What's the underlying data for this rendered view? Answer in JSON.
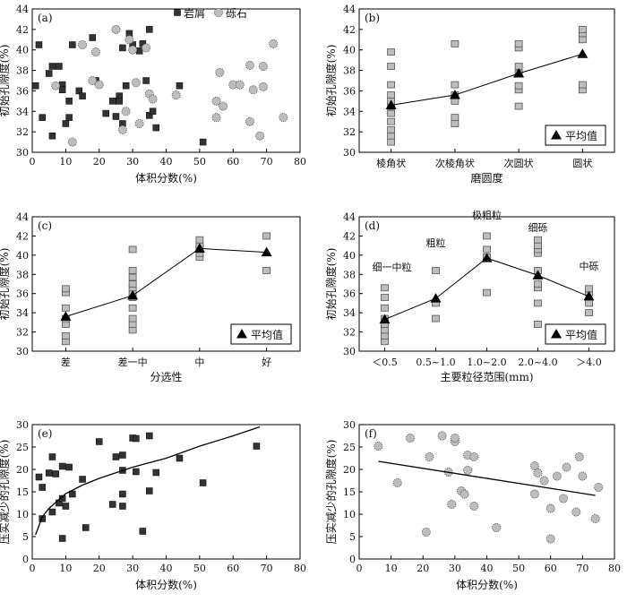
{
  "colors": {
    "ink": "#111111",
    "marker_dark": "#333333",
    "marker_gray": "#bdbdbd",
    "marker_gray_edge": "#555555"
  },
  "chart_data": [
    {
      "panel": "(a)",
      "type": "scatter",
      "xlabel": "体积分数(%)",
      "ylabel": "初始孔隙度(%)",
      "xlim": [
        0,
        80
      ],
      "ylim": [
        30,
        44
      ],
      "xticks": [
        0,
        10,
        20,
        30,
        40,
        50,
        60,
        70,
        80
      ],
      "yticks": [
        30,
        32,
        34,
        36,
        38,
        40,
        42,
        44
      ],
      "legend_position": "top-right",
      "series": [
        {
          "name": "岩屑",
          "marker": "square-dark",
          "points": [
            [
              1,
              36.5
            ],
            [
              2,
              40.5
            ],
            [
              3,
              33.4
            ],
            [
              5,
              37.7
            ],
            [
              6,
              31.6
            ],
            [
              6,
              38.4
            ],
            [
              8,
              38.4
            ],
            [
              9,
              36.6
            ],
            [
              9,
              36.1
            ],
            [
              10,
              32.8
            ],
            [
              11,
              33.4
            ],
            [
              11,
              35
            ],
            [
              12,
              40.5
            ],
            [
              14,
              36
            ],
            [
              15,
              35.5
            ],
            [
              18,
              41.2
            ],
            [
              19,
              37
            ],
            [
              22,
              33.8
            ],
            [
              24,
              35
            ],
            [
              25,
              33.5
            ],
            [
              26,
              35.5
            ],
            [
              26,
              35
            ],
            [
              27,
              32.8
            ],
            [
              27,
              40.2
            ],
            [
              28,
              36.5
            ],
            [
              29,
              41.6
            ],
            [
              30,
              40.5
            ],
            [
              32,
              39.9
            ],
            [
              33,
              40.6
            ],
            [
              34,
              37
            ],
            [
              35,
              33.6
            ],
            [
              35,
              42
            ],
            [
              36,
              34
            ],
            [
              37,
              32.4
            ],
            [
              44,
              36.5
            ],
            [
              51,
              31.0
            ]
          ]
        },
        {
          "name": "砾石",
          "marker": "circle-gray",
          "points": [
            [
              7,
              36.5
            ],
            [
              12,
              31.0
            ],
            [
              15,
              40.5
            ],
            [
              18,
              37
            ],
            [
              19,
              39.8
            ],
            [
              20,
              36.6
            ],
            [
              25,
              42
            ],
            [
              27,
              32.2
            ],
            [
              28,
              34
            ],
            [
              29,
              41
            ],
            [
              30,
              40
            ],
            [
              31,
              36.8
            ],
            [
              32,
              32.8
            ],
            [
              34,
              40.2
            ],
            [
              35,
              35.7
            ],
            [
              36,
              35.2
            ],
            [
              43,
              35.6
            ],
            [
              55,
              33.4
            ],
            [
              55,
              35
            ],
            [
              56,
              37.8
            ],
            [
              57,
              34.5
            ],
            [
              60,
              36.6
            ],
            [
              62,
              36.6
            ],
            [
              65,
              33
            ],
            [
              65,
              38.5
            ],
            [
              66,
              36.1
            ],
            [
              68,
              31.6
            ],
            [
              69,
              38.4
            ],
            [
              69,
              36.4
            ],
            [
              72,
              40.6
            ],
            [
              75,
              33.4
            ]
          ]
        }
      ],
      "legend": [
        "岩屑",
        "砾石"
      ]
    },
    {
      "panel": "(b)",
      "type": "scatter",
      "xlabel": "磨圆度",
      "ylabel": "初始孔隙度(%)",
      "categories": [
        "棱角状",
        "次棱角状",
        "次圆状",
        "圆状"
      ],
      "ylim": [
        30,
        44
      ],
      "yticks": [
        30,
        32,
        34,
        36,
        38,
        40,
        42,
        44
      ],
      "legend_position": "bottom-right",
      "series": [
        {
          "name": "样品",
          "marker": "square-gray",
          "points": [
            [
              0,
              31.0
            ],
            [
              0,
              31.6
            ],
            [
              0,
              32.2
            ],
            [
              0,
              33.0
            ],
            [
              0,
              33.8
            ],
            [
              0,
              34.5
            ],
            [
              0,
              35.0
            ],
            [
              0,
              35.6
            ],
            [
              0,
              36.6
            ],
            [
              0,
              38.4
            ],
            [
              0,
              39.8
            ],
            [
              1,
              32.8
            ],
            [
              1,
              33.4
            ],
            [
              1,
              35.0
            ],
            [
              1,
              35.6
            ],
            [
              1,
              36.6
            ],
            [
              1,
              40.6
            ],
            [
              2,
              34.5
            ],
            [
              2,
              36.1
            ],
            [
              2,
              36.5
            ],
            [
              2,
              37.7
            ],
            [
              2,
              38.4
            ],
            [
              2,
              40.2
            ],
            [
              2,
              40.6
            ],
            [
              3,
              36.1
            ],
            [
              3,
              36.6
            ],
            [
              3,
              41.0
            ],
            [
              3,
              41.6
            ],
            [
              3,
              42.0
            ]
          ]
        },
        {
          "name": "平均值",
          "marker": "triangle",
          "values": [
            34.6,
            35.6,
            37.7,
            39.6
          ]
        }
      ],
      "legend": [
        "平均值"
      ]
    },
    {
      "panel": "(c)",
      "type": "scatter",
      "xlabel": "分选性",
      "ylabel": "初始孔隙度(%)",
      "categories": [
        "差",
        "差一中",
        "中",
        "好"
      ],
      "ylim": [
        30,
        44
      ],
      "yticks": [
        30,
        32,
        34,
        36,
        38,
        40,
        42,
        44
      ],
      "legend_position": "bottom-right",
      "series": [
        {
          "name": "样品",
          "marker": "square-gray",
          "points": [
            [
              0,
              31.0
            ],
            [
              0,
              31.6
            ],
            [
              0,
              32.8
            ],
            [
              0,
              33.4
            ],
            [
              0,
              34.5
            ],
            [
              0,
              36.1
            ],
            [
              0,
              36.5
            ],
            [
              1,
              32.2
            ],
            [
              1,
              32.8
            ],
            [
              1,
              33.4
            ],
            [
              1,
              34.5
            ],
            [
              1,
              35.6
            ],
            [
              1,
              36.1
            ],
            [
              1,
              36.6
            ],
            [
              1,
              37.0
            ],
            [
              1,
              37.7
            ],
            [
              1,
              38.4
            ],
            [
              1,
              40.6
            ],
            [
              2,
              39.8
            ],
            [
              2,
              40.2
            ],
            [
              2,
              40.6
            ],
            [
              2,
              41.0
            ],
            [
              2,
              41.6
            ],
            [
              3,
              38.4
            ],
            [
              3,
              42.0
            ]
          ]
        },
        {
          "name": "平均值",
          "marker": "triangle",
          "values": [
            33.6,
            35.8,
            40.7,
            40.3
          ]
        }
      ],
      "legend": [
        "平均值"
      ]
    },
    {
      "panel": "(d)",
      "type": "scatter",
      "xlabel": "主要粒径范围(mm)",
      "ylabel": "初始孔隙度(%)",
      "categories": [
        "＜0.5",
        "0.5~1.0",
        "1.0~2.0",
        "2.0~4.0",
        "＞4.0"
      ],
      "ylim": [
        30,
        44
      ],
      "yticks": [
        30,
        32,
        34,
        36,
        38,
        40,
        42,
        44
      ],
      "annotations": [
        "细一中粒",
        "粗粒",
        "极粗粒",
        "细砾",
        "中砾"
      ],
      "legend_position": "bottom-right",
      "series": [
        {
          "name": "样品",
          "marker": "square-gray",
          "points": [
            [
              0,
              31.0
            ],
            [
              0,
              31.6
            ],
            [
              0,
              32.2
            ],
            [
              0,
              32.8
            ],
            [
              0,
              33.4
            ],
            [
              0,
              34.5
            ],
            [
              0,
              35.6
            ],
            [
              0,
              36.6
            ],
            [
              1,
              33.4
            ],
            [
              1,
              35.0
            ],
            [
              1,
              38.4
            ],
            [
              2,
              36.1
            ],
            [
              2,
              39.8
            ],
            [
              2,
              40.6
            ],
            [
              2,
              42.0
            ],
            [
              3,
              32.8
            ],
            [
              3,
              35.0
            ],
            [
              3,
              36.6
            ],
            [
              3,
              37.0
            ],
            [
              3,
              38.4
            ],
            [
              3,
              40.2
            ],
            [
              3,
              40.6
            ],
            [
              3,
              41.0
            ],
            [
              3,
              41.6
            ],
            [
              4,
              34.0
            ],
            [
              4,
              35.0
            ],
            [
              4,
              36.1
            ],
            [
              4,
              36.5
            ]
          ]
        },
        {
          "name": "平均值",
          "marker": "triangle",
          "values": [
            33.3,
            35.5,
            39.7,
            37.9,
            35.7
          ]
        }
      ],
      "legend": [
        "平均值"
      ]
    },
    {
      "panel": "(e)",
      "type": "scatter",
      "xlabel": "体积分数(%)",
      "ylabel": "压实减少的孔隙度(%)",
      "xlim": [
        0,
        80
      ],
      "ylim": [
        0,
        30
      ],
      "xticks": [
        0,
        10,
        20,
        30,
        40,
        50,
        60,
        70,
        80
      ],
      "yticks": [
        0,
        5,
        10,
        15,
        20,
        25,
        30
      ],
      "series": [
        {
          "name": "样品",
          "marker": "square-dark",
          "points": [
            [
              2,
              18.3
            ],
            [
              3,
              16
            ],
            [
              3,
              9
            ],
            [
              5,
              19.2
            ],
            [
              6,
              22.8
            ],
            [
              6,
              10.5
            ],
            [
              7,
              19
            ],
            [
              8,
              12.5
            ],
            [
              9,
              20.7
            ],
            [
              9,
              13.5
            ],
            [
              9,
              4.6
            ],
            [
              10,
              11.8
            ],
            [
              11,
              20.5
            ],
            [
              12,
              14.5
            ],
            [
              15,
              17.8
            ],
            [
              16,
              7
            ],
            [
              20,
              26.2
            ],
            [
              24,
              12.2
            ],
            [
              25,
              22.8
            ],
            [
              27,
              23.2
            ],
            [
              27,
              11.8
            ],
            [
              27,
              14.5
            ],
            [
              27,
              19.8
            ],
            [
              30,
              27
            ],
            [
              31,
              26.9
            ],
            [
              31,
              19.5
            ],
            [
              33,
              6.2
            ],
            [
              35,
              27.5
            ],
            [
              35,
              15.2
            ],
            [
              37,
              19.3
            ],
            [
              44,
              22.5
            ],
            [
              51,
              17
            ],
            [
              67,
              25.2
            ]
          ]
        },
        {
          "name": "趋势线",
          "marker": "line",
          "points": [
            [
              1,
              5.4
            ],
            [
              3,
              9.4
            ],
            [
              5,
              11.3
            ],
            [
              10,
              14.6
            ],
            [
              15,
              16.5
            ],
            [
              20,
              18.0
            ],
            [
              30,
              20.5
            ],
            [
              40,
              22.5
            ],
            [
              50,
              25.2
            ],
            [
              60,
              27.5
            ],
            [
              68,
              29.5
            ]
          ]
        }
      ]
    },
    {
      "panel": "(f)",
      "type": "scatter",
      "xlabel": "体积分数(%)",
      "ylabel": "压实减少的孔隙度(%)",
      "xlim": [
        0,
        80
      ],
      "ylim": [
        0,
        30
      ],
      "xticks": [
        0,
        10,
        20,
        30,
        40,
        50,
        60,
        70,
        80
      ],
      "yticks": [
        0,
        5,
        10,
        15,
        20,
        25,
        30
      ],
      "series": [
        {
          "name": "样品",
          "marker": "circle-gray",
          "points": [
            [
              6,
              25.2
            ],
            [
              12,
              17
            ],
            [
              16,
              27
            ],
            [
              21,
              6
            ],
            [
              22,
              22.8
            ],
            [
              26,
              27.5
            ],
            [
              28,
              19.4
            ],
            [
              29,
              12.2
            ],
            [
              30,
              26.2
            ],
            [
              30,
              27
            ],
            [
              32,
              15.2
            ],
            [
              33,
              14.5
            ],
            [
              34,
              23.2
            ],
            [
              34,
              19.8
            ],
            [
              36,
              22.8
            ],
            [
              36,
              11.8
            ],
            [
              43,
              7
            ],
            [
              55,
              14.5
            ],
            [
              55,
              20.8
            ],
            [
              56,
              19.2
            ],
            [
              58,
              17.5
            ],
            [
              60,
              11.3
            ],
            [
              60,
              4.5
            ],
            [
              62,
              18.5
            ],
            [
              64,
              13.5
            ],
            [
              65,
              20.5
            ],
            [
              68,
              10.5
            ],
            [
              69,
              22.8
            ],
            [
              70,
              18.5
            ],
            [
              74,
              9
            ],
            [
              75,
              16
            ]
          ]
        },
        {
          "name": "趋势线",
          "marker": "line",
          "points": [
            [
              6,
              21.8
            ],
            [
              74,
              14.2
            ]
          ]
        }
      ]
    }
  ]
}
